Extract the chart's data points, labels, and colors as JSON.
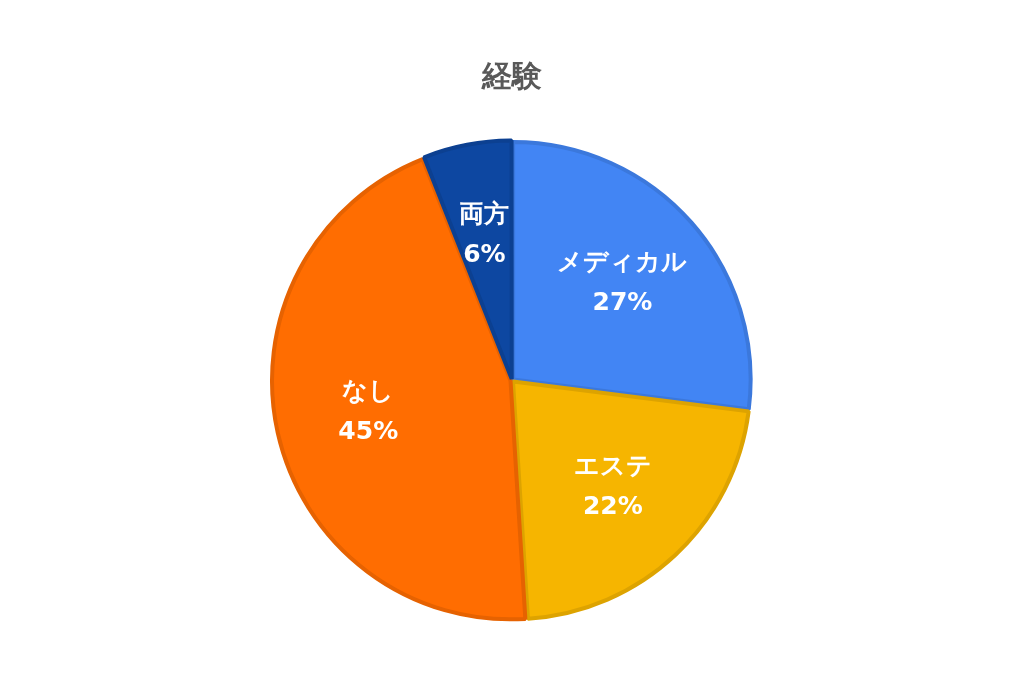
{
  "chart_data": {
    "type": "pie",
    "title": "経験",
    "categories": [
      "メディカル",
      "エステ",
      "なし",
      "両方"
    ],
    "values": [
      27,
      22,
      45,
      6
    ],
    "colors": [
      "#4285f4",
      "#f6b500",
      "#ff6d01",
      "#0d47a1"
    ],
    "value_labels": [
      "27%",
      "22%",
      "45%",
      "6%"
    ]
  }
}
